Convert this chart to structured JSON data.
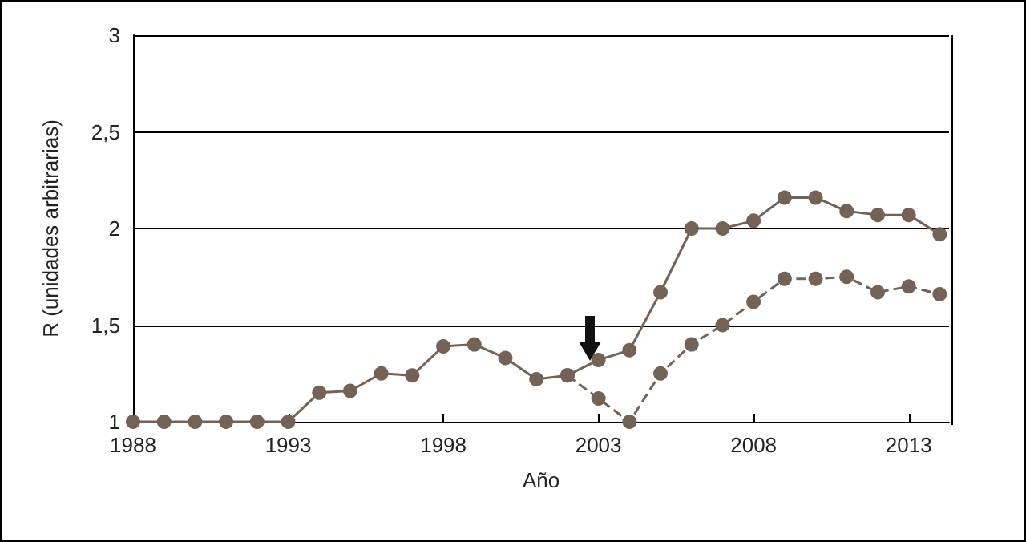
{
  "chart_data": {
    "type": "line",
    "xlabel": "Año",
    "ylabel": "R (unidades arbitrarias)",
    "x": [
      1988,
      1989,
      1990,
      1991,
      1992,
      1993,
      1994,
      1995,
      1996,
      1997,
      1998,
      1999,
      2000,
      2001,
      2002,
      2003,
      2004,
      2005,
      2006,
      2007,
      2008,
      2009,
      2010,
      2011,
      2012,
      2013,
      2014
    ],
    "series": [
      {
        "color": "#736357",
        "line_style": "solid",
        "values": [
          1,
          1,
          1,
          1,
          1,
          1,
          1.15,
          1.16,
          1.25,
          1.24,
          1.39,
          1.4,
          1.33,
          1.22,
          1.24,
          1.32,
          1.37,
          1.67,
          2.0,
          2.0,
          2.04,
          2.16,
          2.16,
          2.09,
          2.07,
          2.07,
          1.97
        ]
      },
      {
        "color": "#736357",
        "line_style": "dashed",
        "values": [
          null,
          null,
          null,
          null,
          null,
          null,
          null,
          null,
          null,
          null,
          null,
          null,
          null,
          null,
          1.24,
          1.12,
          1.0,
          1.25,
          1.4,
          1.5,
          1.62,
          1.74,
          1.74,
          1.75,
          1.67,
          1.7,
          1.66
        ]
      }
    ],
    "xlim": [
      1988,
      2014.3
    ],
    "xticks": [
      1988,
      1993,
      1998,
      2003,
      2008,
      2013
    ],
    "ylim": [
      1,
      3
    ],
    "yticks": [
      1,
      {
        "value": 1.5,
        "label": "1,5"
      },
      2,
      {
        "value": 2.5,
        "label": "2,5"
      },
      3
    ],
    "grid": "y",
    "marker": "circle"
  }
}
